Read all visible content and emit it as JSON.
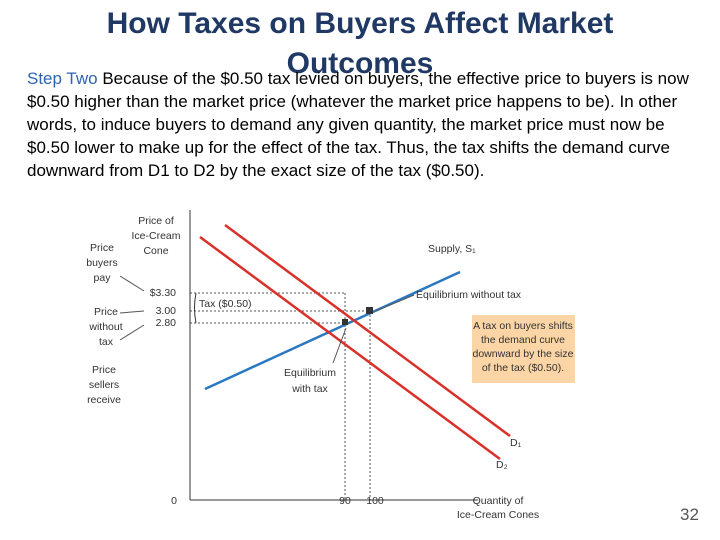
{
  "header": {
    "title": "How Taxes on Buyers Affect Market Outcomes"
  },
  "body": {
    "step": "Step Two",
    "text": "Because of the $0.50 tax levied on buyers, the effective price to buyers is now $0.50 higher than the market price (whatever the market price happens to be). In other words, to induce buyers to demand any given quantity, the market price must now be $0.50 lower to make up for the effect of the tax. Thus, the tax shifts the demand curve downward from D1 to D2 by the exact size of the tax ($0.50)."
  },
  "figure": {
    "y_axis_label": [
      "Price of",
      "Ice-Cream",
      "Cone"
    ],
    "x_axis_label": [
      "Quantity of",
      "Ice-Cream Cones"
    ],
    "price_labels": [
      "$3.30",
      "3.00",
      "2.80"
    ],
    "quantity_labels": [
      "0",
      "90",
      "100"
    ],
    "buyers_pay": [
      "Price",
      "buyers",
      "pay"
    ],
    "without_tax": [
      "Price",
      "without",
      "tax"
    ],
    "sellers_receive": [
      "Price",
      "sellers",
      "receive"
    ],
    "tax": "Tax ($0.50)",
    "supply": "Supply, S₁",
    "eq_without": "Equilibrium without tax",
    "eq_with": [
      "Equilibrium",
      "with tax"
    ],
    "callout": [
      "A tax on buyers shifts",
      "the demand curve",
      "downward by the size",
      "of the tax ($0.50)."
    ],
    "d1": "D₁",
    "d2": "D₂"
  },
  "footer": {
    "page": "32"
  }
}
